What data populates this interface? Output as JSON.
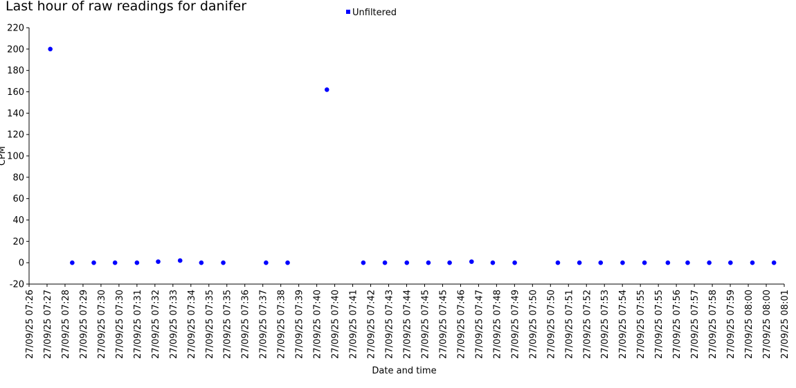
{
  "chart_data": {
    "type": "scatter",
    "title": "Last hour of raw readings for danifer",
    "xlabel": "Date and time",
    "ylabel": "CPM",
    "ylim": [
      -20,
      220
    ],
    "yticks": [
      -20,
      0,
      20,
      40,
      60,
      80,
      100,
      120,
      140,
      160,
      180,
      200,
      220
    ],
    "xlim": [
      "2025-09-27 07:26:02",
      "2025-09-27 08:01:37"
    ],
    "xtick_labels": [
      "27/09/25 07:26",
      "27/09/25 07:27",
      "27/09/25 07:28",
      "27/09/25 07:29",
      "27/09/25 07:30",
      "27/09/25 07:30",
      "27/09/25 07:31",
      "27/09/25 07:32",
      "27/09/25 07:33",
      "27/09/25 07:34",
      "27/09/25 07:35",
      "27/09/25 07:35",
      "27/09/25 07:36",
      "27/09/25 07:37",
      "27/09/25 07:38",
      "27/09/25 07:39",
      "27/09/25 07:40",
      "27/09/25 07:40",
      "27/09/25 07:41",
      "27/09/25 07:42",
      "27/09/25 07:43",
      "27/09/25 07:44",
      "27/09/25 07:45",
      "27/09/25 07:45",
      "27/09/25 07:46",
      "27/09/25 07:47",
      "27/09/25 07:48",
      "27/09/25 07:49",
      "27/09/25 07:50",
      "27/09/25 07:50",
      "27/09/25 07:51",
      "27/09/25 07:52",
      "27/09/25 07:53",
      "27/09/25 07:54",
      "27/09/25 07:55",
      "27/09/25 07:55",
      "27/09/25 07:56",
      "27/09/25 07:57",
      "27/09/25 07:58",
      "27/09/25 07:59",
      "27/09/25 08:00",
      "27/09/25 08:00",
      "27/09/25 08:01"
    ],
    "legend": "top-center",
    "grid": false,
    "series": [
      {
        "name": "Unfiltered",
        "color": "#0000ff",
        "x": [
          "2025-09-27 07:27:02",
          "2025-09-27 07:28:04",
          "2025-09-27 07:29:05",
          "2025-09-27 07:30:05",
          "2025-09-27 07:31:07",
          "2025-09-27 07:32:07",
          "2025-09-27 07:33:09",
          "2025-09-27 07:34:09",
          "2025-09-27 07:35:11",
          "2025-09-27 07:37:12",
          "2025-09-27 07:38:13",
          "2025-09-27 07:40:04",
          "2025-09-27 07:41:47",
          "2025-09-27 07:42:48",
          "2025-09-27 07:43:50",
          "2025-09-27 07:44:51",
          "2025-09-27 07:45:51",
          "2025-09-27 07:46:53",
          "2025-09-27 07:47:53",
          "2025-09-27 07:48:55",
          "2025-09-27 07:50:57",
          "2025-09-27 07:51:58",
          "2025-09-27 07:52:58",
          "2025-09-27 07:54:00",
          "2025-09-27 07:55:02",
          "2025-09-27 07:56:08",
          "2025-09-27 07:57:04",
          "2025-09-27 07:58:05",
          "2025-09-27 07:59:05",
          "2025-09-27 08:00:07",
          "2025-09-27 08:01:08"
        ],
        "y": [
          200,
          0,
          0,
          0,
          0,
          1,
          2,
          0,
          0,
          0,
          0,
          162,
          0,
          0,
          0,
          0,
          0,
          1,
          0,
          0,
          0,
          0,
          0,
          0,
          0,
          0,
          0,
          0,
          0,
          0,
          0
        ]
      }
    ]
  }
}
